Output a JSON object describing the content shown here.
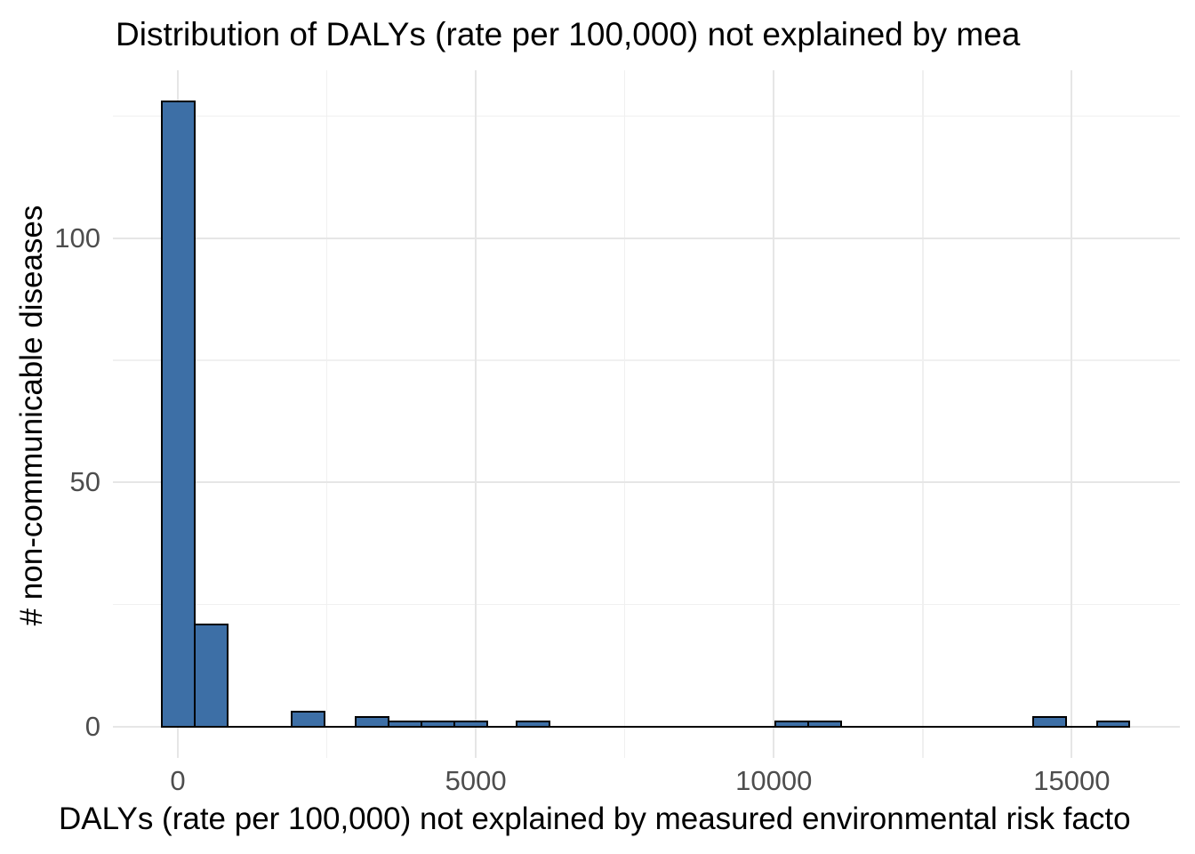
{
  "title": "Distribution of DALYs (rate per 100,000) not explained by mea",
  "x_axis": {
    "label": "DALYs (rate per 100,000) not explained by measured environmental risk facto",
    "tick_labels": [
      "0",
      "5000",
      "10000",
      "15000"
    ]
  },
  "y_axis": {
    "label": "# non-communicable diseases",
    "tick_labels": [
      "0",
      "50",
      "100"
    ]
  },
  "colors": {
    "bar_fill": "#3D6FA6",
    "bar_stroke": "#000000",
    "grid_major": "#e6e6e6",
    "grid_minor": "#f0f0f0",
    "tick_text": "#4d4d4d",
    "title_text": "#000000",
    "background": "#ffffff"
  },
  "chart_data": {
    "type": "bar",
    "subtype": "histogram",
    "title": "Distribution of DALYs (rate per 100,000) not explained by mea",
    "xlabel": "DALYs (rate per 100,000) not explained by measured environmental risk facto",
    "ylabel": "# non-communicable diseases",
    "xlim": [
      -1090,
      16815
    ],
    "ylim": [
      -6.4,
      134.4
    ],
    "x_major_ticks": [
      0,
      5000,
      10000,
      15000
    ],
    "x_minor_gridlines": [
      2500,
      7500,
      12500
    ],
    "y_major_ticks": [
      0,
      50,
      100
    ],
    "y_minor_gridlines": [
      25,
      75,
      125
    ],
    "approx_binwidth": 552,
    "bins": [
      {
        "x0": -276,
        "x1": 276,
        "count": 128
      },
      {
        "x0": 276,
        "x1": 828,
        "count": 21
      },
      {
        "x0": 1910,
        "x1": 2462,
        "count": 3
      },
      {
        "x0": 2985,
        "x1": 3537,
        "count": 2
      },
      {
        "x0": 3537,
        "x1": 4089,
        "count": 1
      },
      {
        "x0": 4089,
        "x1": 4641,
        "count": 1
      },
      {
        "x0": 4641,
        "x1": 5193,
        "count": 1
      },
      {
        "x0": 5690,
        "x1": 6242,
        "count": 1
      },
      {
        "x0": 10020,
        "x1": 10572,
        "count": 1
      },
      {
        "x0": 10572,
        "x1": 11124,
        "count": 1
      },
      {
        "x0": 14350,
        "x1": 14902,
        "count": 2
      },
      {
        "x0": 15420,
        "x1": 15972,
        "count": 1
      }
    ],
    "zero_bin_baseline": {
      "x0": -276,
      "x1": 15972
    },
    "grid": true,
    "legend": false
  }
}
